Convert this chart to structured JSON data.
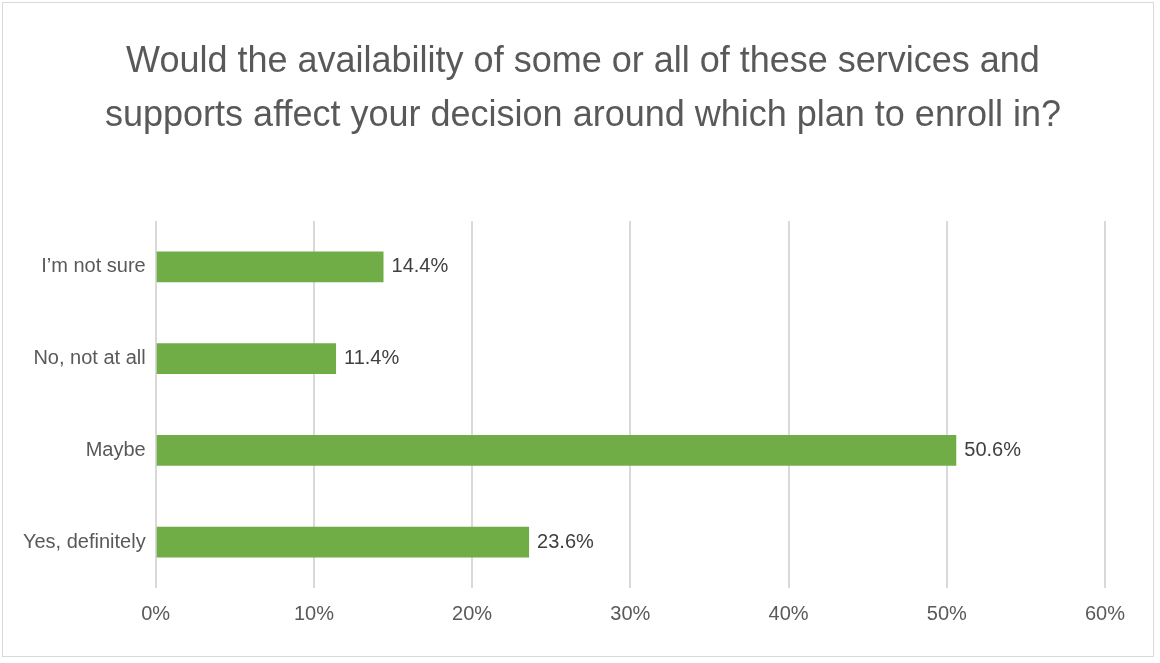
{
  "chart_data": {
    "type": "bar",
    "orientation": "horizontal",
    "title": "Would the availability of some or all of these services and supports affect your decision around which plan to enroll in?",
    "categories": [
      "I’m not sure",
      "No, not at all",
      "Maybe",
      "Yes, definitely"
    ],
    "values": [
      14.4,
      11.4,
      50.6,
      23.6
    ],
    "value_labels": [
      "14.4%",
      "11.4%",
      "50.6%",
      "23.6%"
    ],
    "color": "#70ad47",
    "xlim": [
      0,
      60
    ],
    "xticks": [
      {
        "value": 0,
        "label": "0%"
      },
      {
        "value": 10,
        "label": "10%"
      },
      {
        "value": 20,
        "label": "20%"
      },
      {
        "value": 30,
        "label": "30%"
      },
      {
        "value": 40,
        "label": "40%"
      },
      {
        "value": 50,
        "label": "50%"
      },
      {
        "value": 60,
        "label": "60%"
      }
    ],
    "grid": "x",
    "legend": false
  }
}
